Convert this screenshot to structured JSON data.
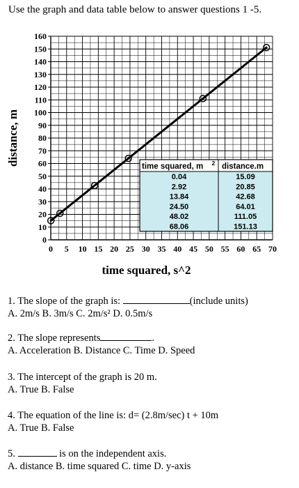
{
  "header": {
    "instructions": "Use the graph and data table below to answer questions 1 -5."
  },
  "chart_data": {
    "type": "line",
    "xlabel": "time squared, s^2",
    "ylabel": "distance, m",
    "xlim": [
      0,
      70
    ],
    "ylim": [
      0,
      160
    ],
    "x_ticks": [
      "0",
      "5",
      "10",
      "15",
      "20",
      "25",
      "30",
      "35",
      "40",
      "45",
      "50",
      "55",
      "60",
      "65",
      "70"
    ],
    "y_ticks": [
      "0",
      "10",
      "20",
      "30",
      "40",
      "50",
      "60",
      "70",
      "80",
      "90",
      "100",
      "110",
      "120",
      "130",
      "140",
      "150",
      "160"
    ],
    "grid": true,
    "series": [
      {
        "x": [
          0.04,
          2.92,
          13.84,
          24.5,
          48.02,
          68.06
        ],
        "y": [
          15.09,
          20.85,
          42.68,
          64.01,
          111.05,
          151.13
        ]
      }
    ],
    "table": {
      "headers": [
        "time squared, m",
        "2",
        "distance.m"
      ],
      "rows": [
        [
          "0.04",
          "15.09"
        ],
        [
          "2.92",
          "20.85"
        ],
        [
          "13.84",
          "42.68"
        ],
        [
          "24.50",
          "64.01"
        ],
        [
          "48.02",
          "111.05"
        ],
        [
          "68.06",
          "151.13"
        ]
      ],
      "fill_color": "#ccebf0"
    }
  },
  "questions": {
    "q1": {
      "text_a": "1. The slope of the graph is: ",
      "text_b": "(include units)",
      "options": "A. 2m/s  B. 3m/s  C. 2m/s²  D. 0.5m/s"
    },
    "q2": {
      "text": "2. The slope represents",
      "dot": ".",
      "options": "A. Acceleration   B. Distance  C. Time  D. Speed"
    },
    "q3": {
      "text": "3. The intercept of the graph is 20 m.",
      "options": "A. True     B. False"
    },
    "q4": {
      "text": "4. The equation of the line is: d= (2.8m/sec) t + 10m",
      "options": "A. True    B. False"
    },
    "q5": {
      "num": "5. ",
      "text": " is on the independent axis.",
      "options": "A. distance  B. time squared  C. time   D. y-axis"
    }
  }
}
